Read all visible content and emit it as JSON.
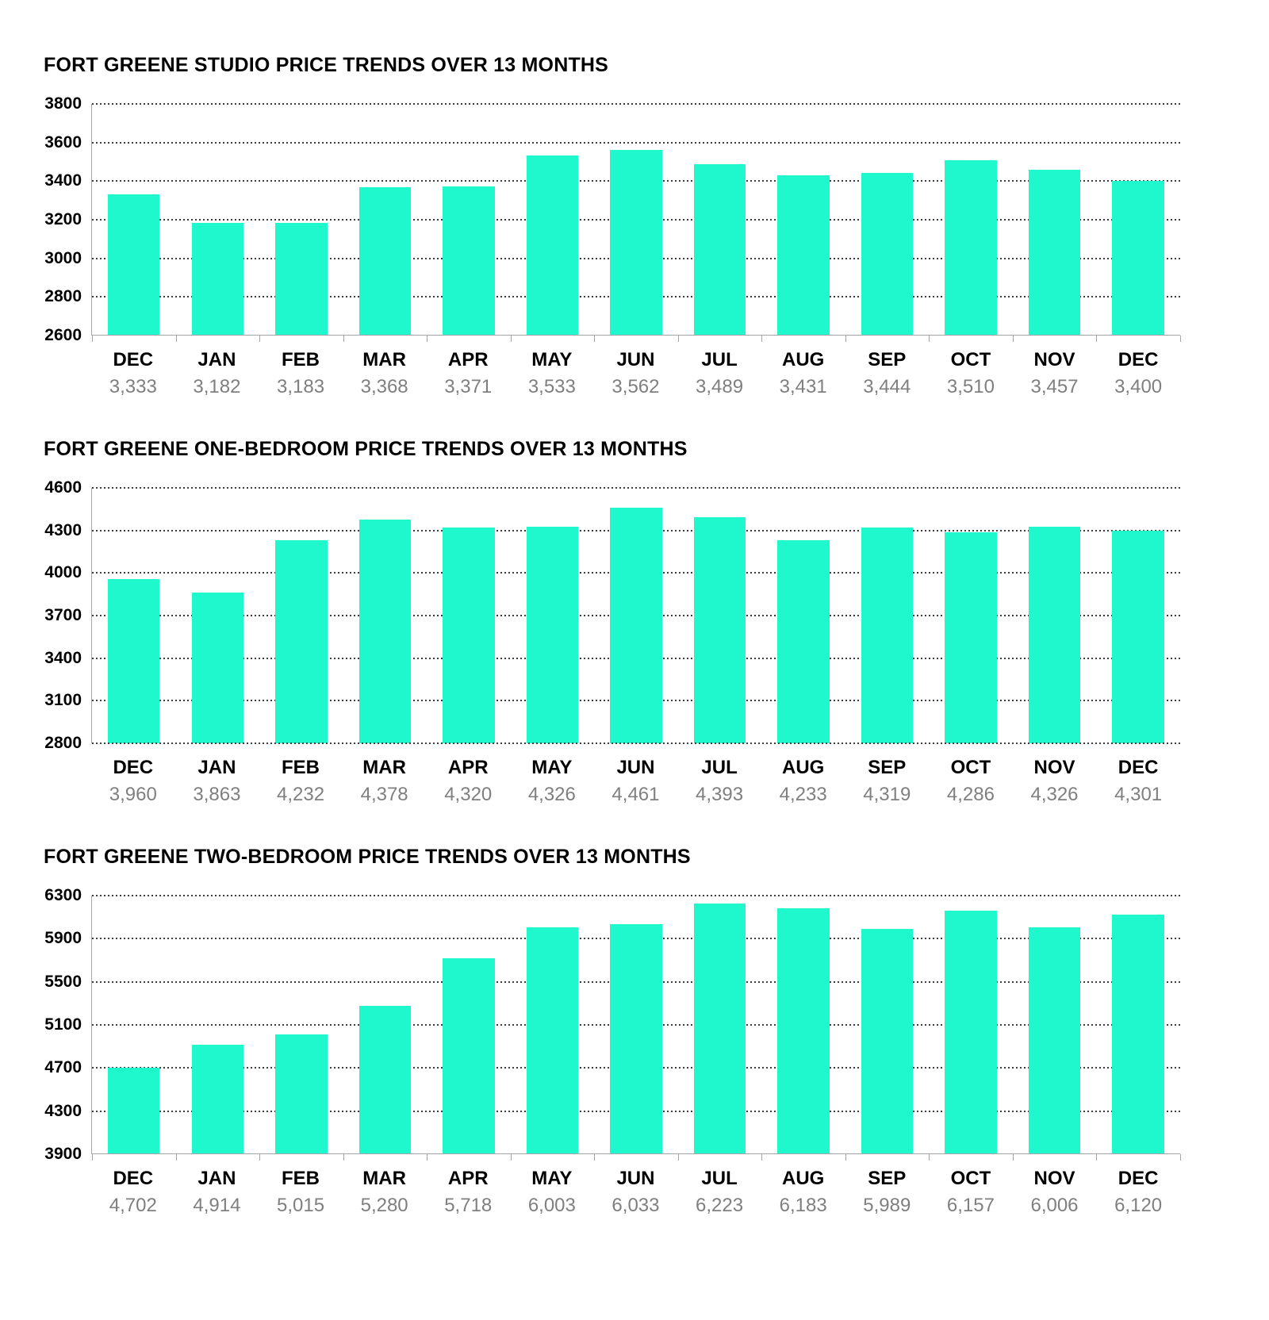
{
  "colors": {
    "bar": "#1EF8CC",
    "grid_dots": "#3d3d3d",
    "axis_line": "#a6a6a6",
    "month_text": "#000000",
    "value_text": "#7f7f7f",
    "background": "#ffffff"
  },
  "chart_data": [
    {
      "type": "bar",
      "title": "FORT GREENE STUDIO PRICE TRENDS OVER 13 MONTHS",
      "xlabel": "",
      "ylabel": "",
      "categories": [
        "DEC",
        "JAN",
        "FEB",
        "MAR",
        "APR",
        "MAY",
        "JUN",
        "JUL",
        "AUG",
        "SEP",
        "OCT",
        "NOV",
        "DEC"
      ],
      "values": [
        3333,
        3182,
        3183,
        3368,
        3371,
        3533,
        3562,
        3489,
        3431,
        3444,
        3510,
        3457,
        3400
      ],
      "value_labels": [
        "3,333",
        "3,182",
        "3,183",
        "3,368",
        "3,371",
        "3,533",
        "3,562",
        "3,489",
        "3,431",
        "3,444",
        "3,510",
        "3,457",
        "3,400"
      ],
      "ylim": [
        2600,
        3800
      ],
      "yticks": [
        3800,
        3600,
        3400,
        3200,
        3000,
        2800,
        2600
      ],
      "ytick_step": 200,
      "grid": "dotted-horizontal",
      "legend": "none",
      "baseline": "solid-with-ticks",
      "bar_color": "#1EF8CC"
    },
    {
      "type": "bar",
      "title": "FORT GREENE ONE-BEDROOM PRICE TRENDS OVER 13 MONTHS",
      "xlabel": "",
      "ylabel": "",
      "categories": [
        "DEC",
        "JAN",
        "FEB",
        "MAR",
        "APR",
        "MAY",
        "JUN",
        "JUL",
        "AUG",
        "SEP",
        "OCT",
        "NOV",
        "DEC"
      ],
      "values": [
        3960,
        3863,
        4232,
        4378,
        4320,
        4326,
        4461,
        4393,
        4233,
        4319,
        4286,
        4326,
        4301
      ],
      "value_labels": [
        "3,960",
        "3,863",
        "4,232",
        "4,378",
        "4,320",
        "4,326",
        "4,461",
        "4,393",
        "4,233",
        "4,319",
        "4,286",
        "4,326",
        "4,301"
      ],
      "ylim": [
        2800,
        4600
      ],
      "yticks": [
        4600,
        4300,
        4000,
        3700,
        3400,
        3100,
        2800
      ],
      "ytick_step": 300,
      "grid": "dotted-horizontal",
      "legend": "none",
      "baseline": "dotted",
      "bar_color": "#1EF8CC"
    },
    {
      "type": "bar",
      "title": "FORT GREENE TWO-BEDROOM PRICE TRENDS OVER 13 MONTHS",
      "xlabel": "",
      "ylabel": "",
      "categories": [
        "DEC",
        "JAN",
        "FEB",
        "MAR",
        "APR",
        "MAY",
        "JUN",
        "JUL",
        "AUG",
        "SEP",
        "OCT",
        "NOV",
        "DEC"
      ],
      "values": [
        4702,
        4914,
        5015,
        5280,
        5718,
        6003,
        6033,
        6223,
        6183,
        5989,
        6157,
        6006,
        6120
      ],
      "value_labels": [
        "4,702",
        "4,914",
        "5,015",
        "5,280",
        "5,718",
        "6,003",
        "6,033",
        "6,223",
        "6,183",
        "5,989",
        "6,157",
        "6,006",
        "6,120"
      ],
      "ylim": [
        3900,
        6300
      ],
      "yticks": [
        6300,
        5900,
        5500,
        5100,
        4700,
        4300,
        3900
      ],
      "ytick_step": 400,
      "grid": "dotted-horizontal",
      "legend": "none",
      "baseline": "solid-with-ticks",
      "bar_color": "#1EF8CC"
    }
  ]
}
